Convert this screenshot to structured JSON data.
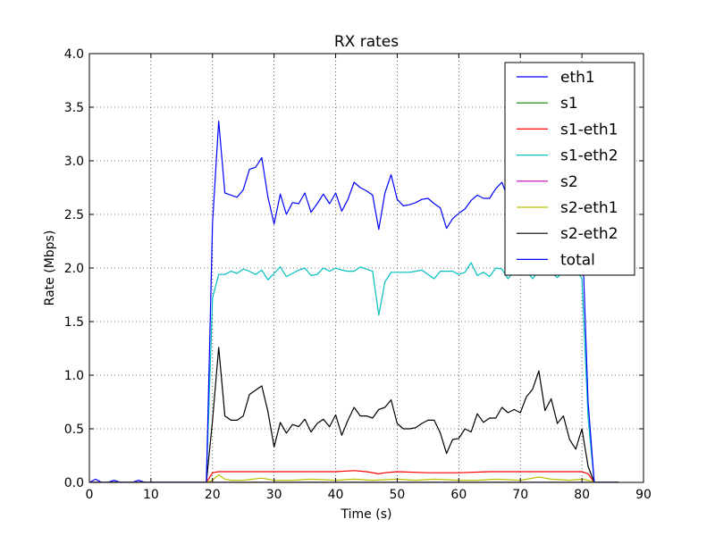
{
  "chart_data": {
    "type": "line",
    "title": "RX rates",
    "xlabel": "Time (s)",
    "ylabel": "Rate (Mbps)",
    "xlim": [
      0,
      90
    ],
    "ylim": [
      0,
      4.0
    ],
    "xticks": [
      0,
      10,
      20,
      30,
      40,
      50,
      60,
      70,
      80,
      90
    ],
    "yticks": [
      0.0,
      0.5,
      1.0,
      1.5,
      2.0,
      2.5,
      3.0,
      3.5,
      4.0
    ],
    "xtick_labels": [
      "0",
      "10",
      "20",
      "30",
      "40",
      "50",
      "60",
      "70",
      "80",
      "90"
    ],
    "ytick_labels": [
      "0.0",
      "0.5",
      "1.0",
      "1.5",
      "2.0",
      "2.5",
      "3.0",
      "3.5",
      "4.0"
    ],
    "grid": true,
    "legend_position": "top-right",
    "series": [
      {
        "name": "eth1",
        "color": "#0000ff",
        "x": [
          0,
          1,
          2,
          3,
          4,
          5,
          6,
          7,
          8,
          9,
          10,
          19,
          81,
          82,
          86
        ],
        "y": [
          0.0,
          0.03,
          0.0,
          0.0,
          0.02,
          0.0,
          0.0,
          0.0,
          0.02,
          0.0,
          0.0,
          0.0,
          0.0,
          0.0,
          0.0
        ]
      },
      {
        "name": "s1",
        "color": "#008000",
        "x": [
          0,
          19,
          82,
          86
        ],
        "y": [
          0.0,
          0.0,
          0.0,
          0.0
        ]
      },
      {
        "name": "s1-eth1",
        "color": "#ff0000",
        "x": [
          0,
          19,
          20,
          21,
          25,
          30,
          35,
          40,
          43,
          45,
          47,
          48,
          50,
          55,
          60,
          65,
          70,
          75,
          80,
          81,
          82,
          86
        ],
        "y": [
          0.0,
          0.0,
          0.09,
          0.1,
          0.1,
          0.1,
          0.1,
          0.1,
          0.11,
          0.1,
          0.08,
          0.09,
          0.1,
          0.09,
          0.09,
          0.1,
          0.1,
          0.1,
          0.1,
          0.08,
          0.0,
          0.0
        ]
      },
      {
        "name": "s1-eth2",
        "color": "#00bfbf",
        "x": [
          0,
          19,
          20,
          21,
          22,
          23,
          24,
          25,
          26,
          27,
          28,
          29,
          30,
          31,
          32,
          33,
          34,
          35,
          36,
          37,
          38,
          39,
          40,
          41,
          42,
          43,
          44,
          45,
          46,
          47,
          48,
          49,
          50,
          51,
          52,
          53,
          54,
          55,
          56,
          57,
          58,
          59,
          60,
          61,
          62,
          63,
          64,
          65,
          66,
          67,
          68,
          69,
          70,
          71,
          72,
          73,
          74,
          75,
          76,
          77,
          78,
          79,
          80,
          81,
          82,
          86
        ],
        "y": [
          0.0,
          0.0,
          1.72,
          1.94,
          1.94,
          1.97,
          1.95,
          1.99,
          1.97,
          1.94,
          1.98,
          1.89,
          1.95,
          2.01,
          1.92,
          1.95,
          1.98,
          2.0,
          1.93,
          1.94,
          2.0,
          1.97,
          2.0,
          1.98,
          1.97,
          1.97,
          2.01,
          1.99,
          1.97,
          1.56,
          1.87,
          1.96,
          1.96,
          1.96,
          1.96,
          1.97,
          1.98,
          1.94,
          1.9,
          1.97,
          1.97,
          1.97,
          1.94,
          1.96,
          2.05,
          1.93,
          1.96,
          1.92,
          2.0,
          1.99,
          1.9,
          1.97,
          1.95,
          1.97,
          1.9,
          1.98,
          1.99,
          1.96,
          1.91,
          1.97,
          1.96,
          1.99,
          1.9,
          0.6,
          0.0,
          0.0
        ]
      },
      {
        "name": "s2",
        "color": "#bf00bf",
        "x": [
          0,
          19,
          82,
          86
        ],
        "y": [
          0.0,
          0.0,
          0.0,
          0.0
        ]
      },
      {
        "name": "s2-eth1",
        "color": "#bfbf00",
        "x": [
          0,
          19,
          20,
          21,
          22,
          23,
          25,
          28,
          30,
          33,
          36,
          40,
          43,
          46,
          50,
          53,
          56,
          60,
          63,
          66,
          70,
          73,
          75,
          78,
          80,
          81,
          82,
          86
        ],
        "y": [
          0.0,
          0.0,
          0.02,
          0.07,
          0.03,
          0.02,
          0.02,
          0.04,
          0.02,
          0.02,
          0.03,
          0.02,
          0.03,
          0.02,
          0.03,
          0.02,
          0.03,
          0.02,
          0.02,
          0.03,
          0.02,
          0.05,
          0.03,
          0.02,
          0.03,
          0.02,
          0.0,
          0.0
        ]
      },
      {
        "name": "s2-eth2",
        "color": "#000000",
        "x": [
          0,
          19,
          20,
          21,
          22,
          23,
          24,
          25,
          26,
          27,
          28,
          29,
          30,
          31,
          32,
          33,
          34,
          35,
          36,
          37,
          38,
          39,
          40,
          41,
          42,
          43,
          44,
          45,
          46,
          47,
          48,
          49,
          50,
          51,
          52,
          53,
          54,
          55,
          56,
          57,
          58,
          59,
          60,
          61,
          62,
          63,
          64,
          65,
          66,
          67,
          68,
          69,
          70,
          71,
          72,
          73,
          74,
          75,
          76,
          77,
          78,
          79,
          80,
          81,
          82,
          86
        ],
        "y": [
          0.0,
          0.0,
          0.58,
          1.26,
          0.62,
          0.58,
          0.58,
          0.62,
          0.82,
          0.86,
          0.9,
          0.66,
          0.33,
          0.56,
          0.46,
          0.54,
          0.52,
          0.59,
          0.47,
          0.55,
          0.59,
          0.52,
          0.63,
          0.44,
          0.58,
          0.7,
          0.62,
          0.62,
          0.6,
          0.68,
          0.7,
          0.77,
          0.55,
          0.5,
          0.5,
          0.51,
          0.55,
          0.58,
          0.58,
          0.46,
          0.27,
          0.4,
          0.41,
          0.5,
          0.47,
          0.64,
          0.56,
          0.6,
          0.6,
          0.7,
          0.65,
          0.68,
          0.65,
          0.8,
          0.87,
          1.04,
          0.67,
          0.78,
          0.55,
          0.62,
          0.4,
          0.31,
          0.5,
          0.15,
          0.0,
          0.0
        ]
      },
      {
        "name": "total",
        "color": "#0000ff",
        "x": [
          0,
          19,
          20,
          21,
          22,
          23,
          24,
          25,
          26,
          27,
          28,
          29,
          30,
          31,
          32,
          33,
          34,
          35,
          36,
          37,
          38,
          39,
          40,
          41,
          42,
          43,
          44,
          45,
          46,
          47,
          48,
          49,
          50,
          51,
          52,
          53,
          54,
          55,
          56,
          57,
          58,
          59,
          60,
          61,
          62,
          63,
          64,
          65,
          66,
          67,
          68,
          69,
          70,
          71,
          72,
          73,
          74,
          75,
          76,
          77,
          78,
          79,
          80,
          81,
          82,
          86
        ],
        "y": [
          0.0,
          0.0,
          2.42,
          3.37,
          2.7,
          2.68,
          2.66,
          2.73,
          2.92,
          2.94,
          3.03,
          2.66,
          2.41,
          2.69,
          2.5,
          2.61,
          2.6,
          2.7,
          2.52,
          2.6,
          2.69,
          2.6,
          2.7,
          2.53,
          2.64,
          2.8,
          2.75,
          2.72,
          2.68,
          2.36,
          2.7,
          2.87,
          2.64,
          2.58,
          2.59,
          2.61,
          2.64,
          2.65,
          2.6,
          2.56,
          2.37,
          2.46,
          2.51,
          2.55,
          2.63,
          2.68,
          2.65,
          2.65,
          2.74,
          2.8,
          2.65,
          2.7,
          2.7,
          2.82,
          2.84,
          2.8,
          2.72,
          2.78,
          2.55,
          2.65,
          2.4,
          2.4,
          2.4,
          0.75,
          0.0,
          0.0
        ]
      }
    ]
  }
}
